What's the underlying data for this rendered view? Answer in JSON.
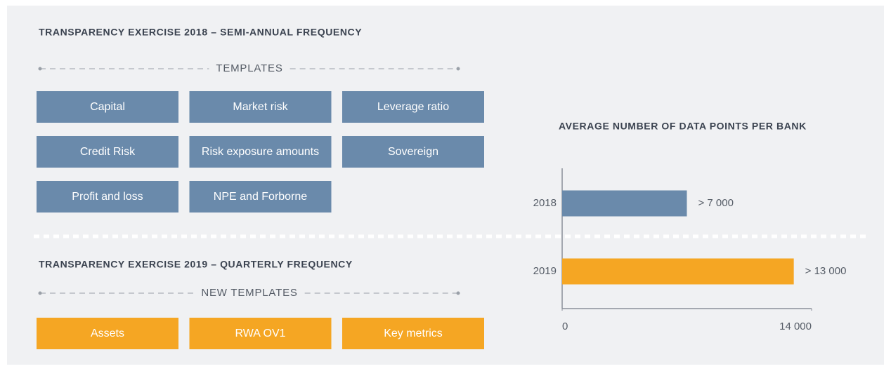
{
  "sections": [
    {
      "title": "TRANSPARENCY EXERCISE 2018 – SEMI-ANNUAL FREQUENCY",
      "label": "TEMPLATES",
      "color": "#6a8aab",
      "items": [
        "Capital",
        "Market risk",
        "Leverage ratio",
        "Credit Risk",
        "Risk exposure amounts",
        "Sovereign",
        "Profit and loss",
        "NPE and Forborne"
      ]
    },
    {
      "title": "TRANSPARENCY EXERCISE 2019 – QUARTERLY FREQUENCY",
      "label": "NEW TEMPLATES",
      "color": "#f5a623",
      "items": [
        "Assets",
        "RWA OV1",
        "Key metrics"
      ]
    }
  ],
  "chart_data": {
    "type": "bar",
    "orientation": "horizontal",
    "title": "AVERAGE NUMBER OF DATA POINTS PER BANK",
    "categories": [
      "2018",
      "2019"
    ],
    "values": [
      7000,
      13000
    ],
    "value_labels": [
      "> 7 000",
      "> 13 000"
    ],
    "colors": [
      "#6a8aab",
      "#f5a623"
    ],
    "xlim": [
      0,
      14000
    ],
    "xticks": [
      0,
      {
        "value": 14000,
        "label": "14 000"
      }
    ]
  }
}
